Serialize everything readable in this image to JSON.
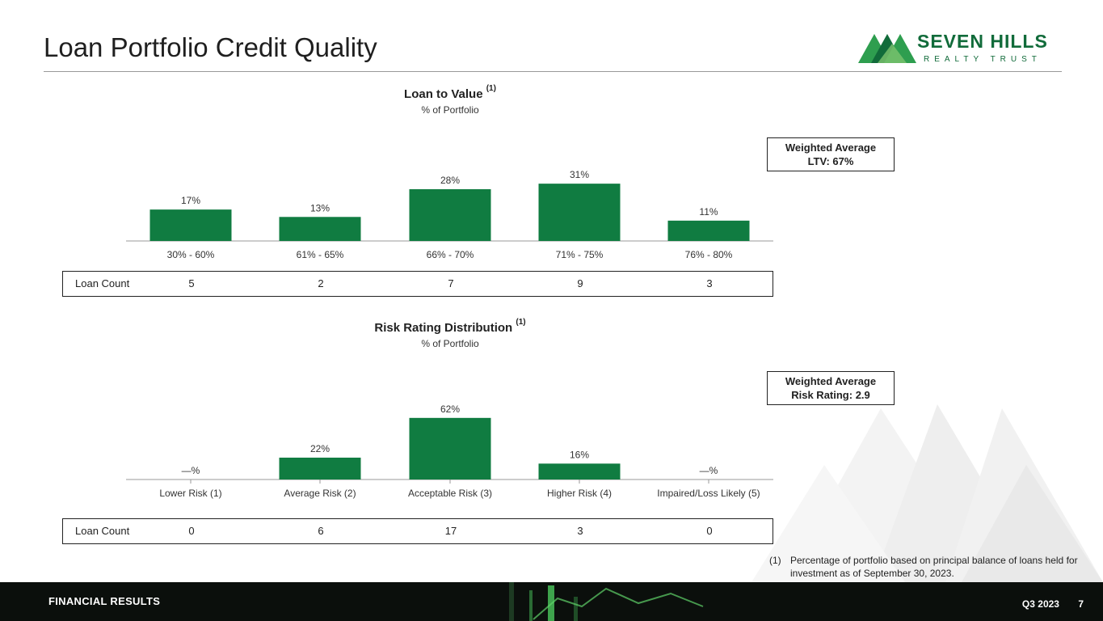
{
  "page": {
    "title": "Loan Portfolio Credit Quality",
    "logo_name": "SEVEN HILLS",
    "logo_sub": "REALTY TRUST"
  },
  "colors": {
    "bar": "#107c41",
    "brand": "#116b3a",
    "footer_bg": "#0b0f0c"
  },
  "ltv": {
    "title": "Loan to Value",
    "title_note": "(1)",
    "subtitle": "% of Portfolio",
    "weighted_line1": "Weighted Average",
    "weighted_line2": "LTV: 67%",
    "count_label": "Loan Count",
    "counts": [
      "5",
      "2",
      "7",
      "9",
      "3"
    ]
  },
  "risk": {
    "title": "Risk Rating Distribution",
    "title_note": "(1)",
    "subtitle": "% of Portfolio",
    "weighted_line1": "Weighted Average",
    "weighted_line2": "Risk Rating: 2.9",
    "count_label": "Loan Count",
    "counts": [
      "0",
      "6",
      "17",
      "3",
      "0"
    ]
  },
  "chart_data": [
    {
      "type": "bar",
      "title": "Loan to Value",
      "subtitle": "% of Portfolio",
      "categories": [
        "30% - 60%",
        "61% - 65%",
        "66% - 70%",
        "71% - 75%",
        "76% - 80%"
      ],
      "values": [
        17,
        13,
        28,
        31,
        11
      ],
      "labels": [
        "17%",
        "13%",
        "28%",
        "31%",
        "11%"
      ],
      "ylim": [
        0,
        35
      ],
      "grid": false,
      "legend": "none"
    },
    {
      "type": "bar",
      "title": "Risk Rating Distribution",
      "subtitle": "% of Portfolio",
      "categories": [
        "Lower Risk (1)",
        "Average Risk (2)",
        "Acceptable Risk (3)",
        "Higher Risk (4)",
        "Impaired/Loss Likely (5)"
      ],
      "values": [
        0,
        22,
        62,
        16,
        0
      ],
      "labels": [
        "—%",
        "22%",
        "62%",
        "16%",
        "—%"
      ],
      "ylim": [
        0,
        70
      ],
      "grid": false,
      "legend": "none"
    }
  ],
  "footnote": {
    "num": "(1)",
    "text": "Percentage of portfolio based on principal balance of loans held for investment as of September 30, 2023."
  },
  "footer": {
    "section": "FINANCIAL RESULTS",
    "quarter": "Q3 2023",
    "page_number": "7"
  }
}
